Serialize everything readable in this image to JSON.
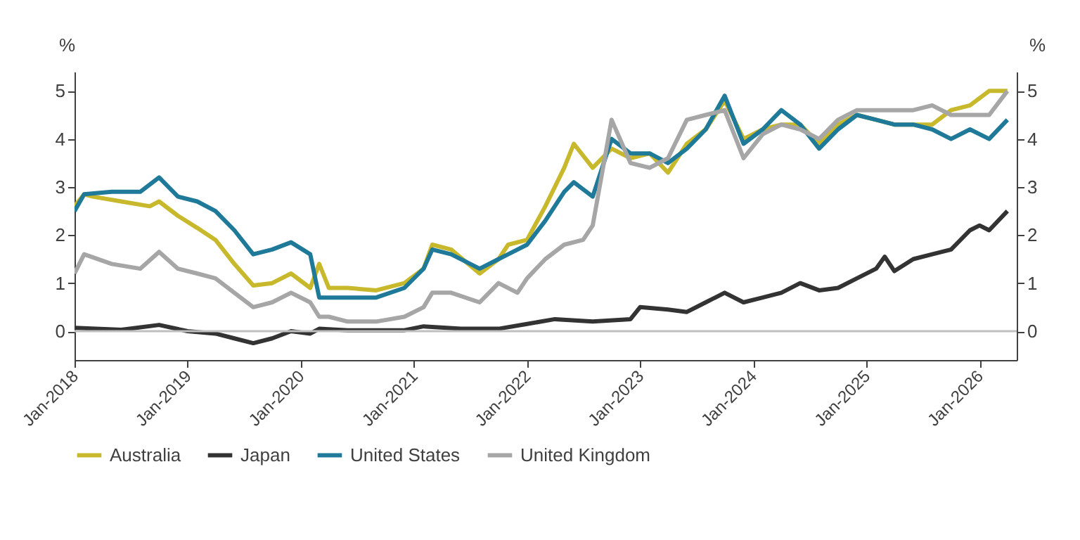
{
  "chart_data": {
    "type": "line",
    "ylabel": "%",
    "y2label": "%",
    "xlim": [
      "2018-01-01",
      "2026-05-01"
    ],
    "xticks": [
      {
        "value": "2018-01",
        "label": "Jan-2018"
      },
      {
        "value": "2019-01",
        "label": "Jan-2019"
      },
      {
        "value": "2020-01",
        "label": "Jan-2020"
      },
      {
        "value": "2021-01",
        "label": "Jan-2021"
      },
      {
        "value": "2022-01",
        "label": "Jan-2022"
      },
      {
        "value": "2023-01",
        "label": "Jan-2023"
      },
      {
        "value": "2024-01",
        "label": "Jan-2024"
      },
      {
        "value": "2025-01",
        "label": "Jan-2025"
      },
      {
        "value": "2026-01",
        "label": "Jan-2026"
      }
    ],
    "ylim": [
      -0.6,
      5.4
    ],
    "yticks": [
      0,
      1,
      2,
      3,
      4,
      5
    ],
    "y2lim": [
      -0.6,
      5.4
    ],
    "y2ticks": [
      0,
      1,
      2,
      3,
      4,
      5
    ],
    "ref_lines": [
      {
        "axis": "y",
        "value": 0,
        "color": "#bfbfbf"
      }
    ],
    "grid": false,
    "legend": "bottom",
    "marker": "none",
    "line_style": "solid",
    "series": [
      {
        "name": "Australia",
        "color": "#c8b92c",
        "x": [
          "2018-01",
          "2018-02",
          "2018-03",
          "2018-06",
          "2018-09",
          "2018-10",
          "2018-12",
          "2019-02",
          "2019-04",
          "2019-06",
          "2019-08",
          "2019-10",
          "2019-12",
          "2020-02",
          "2020-03",
          "2020-04",
          "2020-06",
          "2020-09",
          "2020-12",
          "2021-02",
          "2021-03",
          "2021-05",
          "2021-08",
          "2021-10",
          "2021-11",
          "2022-01",
          "2022-03",
          "2022-05",
          "2022-06",
          "2022-08",
          "2022-10",
          "2022-12",
          "2023-02",
          "2023-04",
          "2023-06",
          "2023-08",
          "2023-10",
          "2023-12",
          "2024-02",
          "2024-04",
          "2024-06",
          "2024-08",
          "2024-10",
          "2024-12",
          "2025-02",
          "2025-04",
          "2025-06",
          "2025-08",
          "2025-10",
          "2025-12",
          "2026-02",
          "2026-04"
        ],
        "values": [
          2.6,
          2.85,
          2.8,
          2.7,
          2.6,
          2.7,
          2.4,
          2.15,
          1.9,
          1.4,
          0.95,
          1.0,
          1.2,
          0.9,
          1.4,
          0.9,
          0.9,
          0.85,
          1.0,
          1.3,
          1.8,
          1.7,
          1.2,
          1.5,
          1.8,
          1.9,
          2.6,
          3.4,
          3.9,
          3.4,
          3.8,
          3.6,
          3.7,
          3.3,
          3.9,
          4.2,
          4.8,
          4.0,
          4.2,
          4.3,
          4.3,
          3.9,
          4.3,
          4.5,
          4.4,
          4.3,
          4.3,
          4.3,
          4.6,
          4.7,
          5.0,
          5.0
        ]
      },
      {
        "name": "Japan",
        "color": "#333333",
        "x": [
          "2018-01",
          "2018-06",
          "2018-10",
          "2019-01",
          "2019-04",
          "2019-06",
          "2019-08",
          "2019-10",
          "2019-12",
          "2020-02",
          "2020-03",
          "2020-06",
          "2020-12",
          "2021-02",
          "2021-06",
          "2021-10",
          "2022-01",
          "2022-04",
          "2022-08",
          "2022-12",
          "2023-01",
          "2023-04",
          "2023-06",
          "2023-08",
          "2023-10",
          "2023-12",
          "2024-02",
          "2024-04",
          "2024-06",
          "2024-08",
          "2024-10",
          "2024-12",
          "2025-02",
          "2025-03",
          "2025-04",
          "2025-06",
          "2025-08",
          "2025-10",
          "2025-12",
          "2026-01",
          "2026-02",
          "2026-04"
        ],
        "values": [
          0.07,
          0.03,
          0.13,
          0.0,
          -0.05,
          -0.15,
          -0.25,
          -0.15,
          0.0,
          -0.05,
          0.05,
          0.02,
          0.02,
          0.1,
          0.05,
          0.05,
          0.15,
          0.25,
          0.2,
          0.25,
          0.5,
          0.45,
          0.4,
          0.6,
          0.8,
          0.6,
          0.7,
          0.8,
          1.0,
          0.85,
          0.9,
          1.1,
          1.3,
          1.55,
          1.25,
          1.5,
          1.6,
          1.7,
          2.1,
          2.2,
          2.1,
          2.5
        ]
      },
      {
        "name": "United States",
        "color": "#1f7a99",
        "x": [
          "2018-01",
          "2018-02",
          "2018-05",
          "2018-08",
          "2018-10",
          "2018-12",
          "2019-02",
          "2019-04",
          "2019-06",
          "2019-08",
          "2019-10",
          "2019-12",
          "2020-02",
          "2020-03",
          "2020-06",
          "2020-09",
          "2020-12",
          "2021-02",
          "2021-03",
          "2021-05",
          "2021-08",
          "2021-10",
          "2021-11",
          "2022-01",
          "2022-03",
          "2022-05",
          "2022-06",
          "2022-08",
          "2022-10",
          "2022-12",
          "2023-02",
          "2023-04",
          "2023-06",
          "2023-08",
          "2023-10",
          "2023-12",
          "2024-02",
          "2024-04",
          "2024-06",
          "2024-08",
          "2024-10",
          "2024-12",
          "2025-02",
          "2025-04",
          "2025-06",
          "2025-08",
          "2025-10",
          "2025-12",
          "2026-02",
          "2026-04"
        ],
        "values": [
          2.5,
          2.85,
          2.9,
          2.9,
          3.2,
          2.8,
          2.7,
          2.5,
          2.1,
          1.6,
          1.7,
          1.85,
          1.6,
          0.7,
          0.7,
          0.7,
          0.9,
          1.3,
          1.7,
          1.6,
          1.3,
          1.5,
          1.6,
          1.8,
          2.3,
          2.9,
          3.1,
          2.8,
          4.0,
          3.7,
          3.7,
          3.5,
          3.8,
          4.2,
          4.9,
          3.9,
          4.2,
          4.6,
          4.3,
          3.8,
          4.2,
          4.5,
          4.4,
          4.3,
          4.3,
          4.2,
          4.0,
          4.2,
          4.0,
          4.4
        ]
      },
      {
        "name": "United Kingdom",
        "color": "#a6a6a6",
        "x": [
          "2018-01",
          "2018-02",
          "2018-05",
          "2018-08",
          "2018-10",
          "2018-12",
          "2019-02",
          "2019-04",
          "2019-06",
          "2019-08",
          "2019-10",
          "2019-12",
          "2020-02",
          "2020-03",
          "2020-04",
          "2020-06",
          "2020-09",
          "2020-12",
          "2021-02",
          "2021-03",
          "2021-05",
          "2021-08",
          "2021-10",
          "2021-12",
          "2022-01",
          "2022-03",
          "2022-05",
          "2022-07",
          "2022-08",
          "2022-10",
          "2022-12",
          "2023-02",
          "2023-04",
          "2023-06",
          "2023-08",
          "2023-10",
          "2023-12",
          "2024-02",
          "2024-04",
          "2024-06",
          "2024-08",
          "2024-10",
          "2024-12",
          "2025-02",
          "2025-04",
          "2025-06",
          "2025-08",
          "2025-10",
          "2025-12",
          "2026-02",
          "2026-04"
        ],
        "values": [
          1.2,
          1.6,
          1.4,
          1.3,
          1.65,
          1.3,
          1.2,
          1.1,
          0.8,
          0.5,
          0.6,
          0.8,
          0.6,
          0.3,
          0.3,
          0.2,
          0.2,
          0.3,
          0.5,
          0.8,
          0.8,
          0.6,
          1.0,
          0.8,
          1.1,
          1.5,
          1.8,
          1.9,
          2.2,
          4.4,
          3.5,
          3.4,
          3.6,
          4.4,
          4.5,
          4.6,
          3.6,
          4.1,
          4.3,
          4.2,
          4.0,
          4.4,
          4.6,
          4.6,
          4.6,
          4.6,
          4.7,
          4.5,
          4.5,
          4.5,
          5.0
        ]
      }
    ]
  }
}
